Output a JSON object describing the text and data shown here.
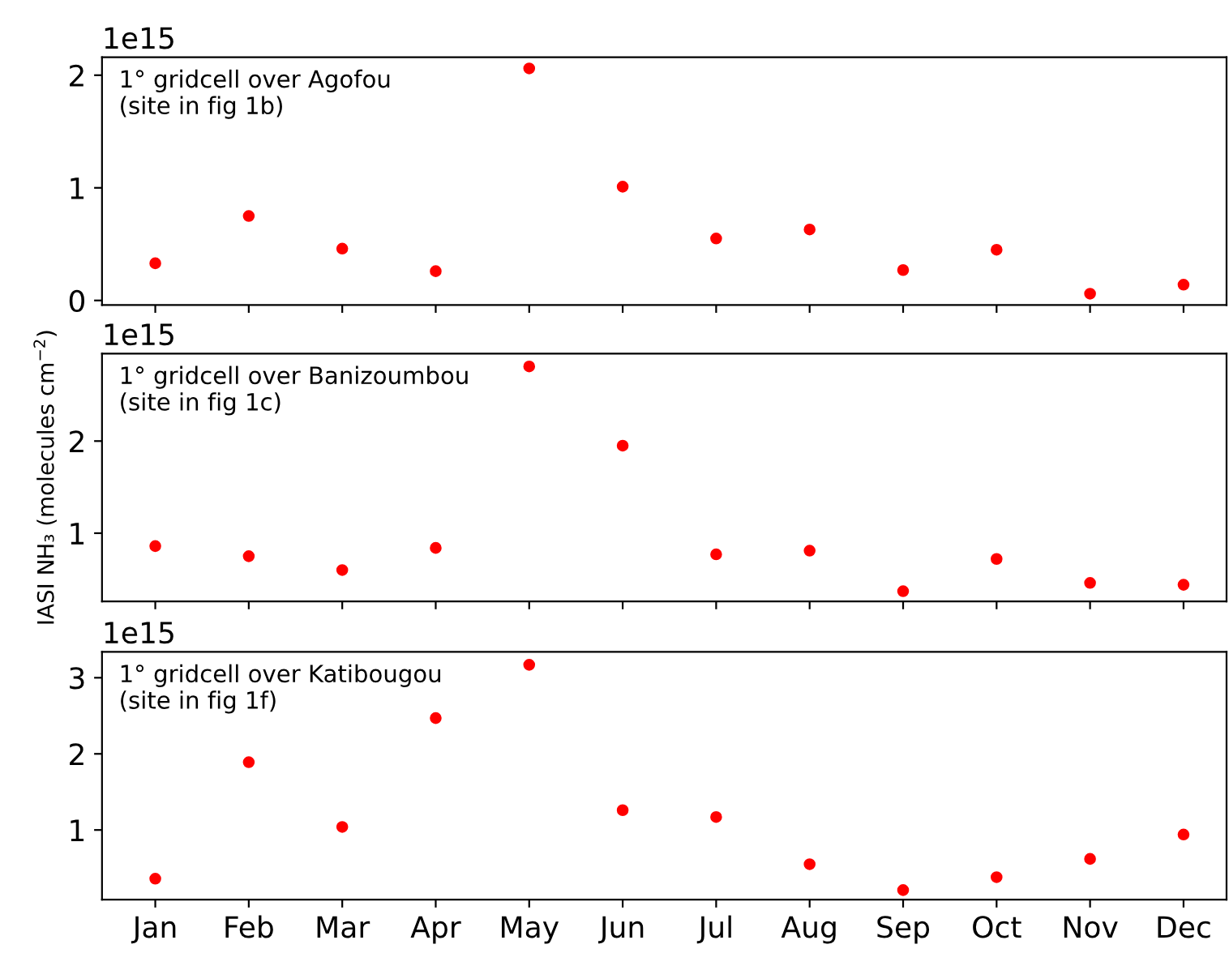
{
  "chart_data": [
    {
      "type": "scatter",
      "categories": [
        null,
        null,
        null,
        null,
        null,
        null,
        null,
        null,
        null,
        null,
        null,
        null
      ],
      "series": [
        {
          "color": "#ff0000",
          "values": [
            0.33,
            0.75,
            0.46,
            0.26,
            2.06,
            1.01,
            0.55,
            0.63,
            0.27,
            0.45,
            0.06,
            0.14
          ]
        }
      ],
      "marker": "circle",
      "ylim": [
        -0.04,
        2.16
      ],
      "yticks": [
        0,
        1,
        2
      ],
      "annotations": [
        "1e15",
        "1° gridcell over Agofou\n(site in fig 1b)"
      ]
    },
    {
      "type": "scatter",
      "categories": [
        null,
        null,
        null,
        null,
        null,
        null,
        null,
        null,
        null,
        null,
        null,
        null
      ],
      "series": [
        {
          "color": "#ff0000",
          "values": [
            0.86,
            0.75,
            0.6,
            0.84,
            2.81,
            1.95,
            0.77,
            0.81,
            0.37,
            0.72,
            0.46,
            0.44
          ]
        }
      ],
      "marker": "circle",
      "ylim": [
        0.26,
        2.95
      ],
      "yticks": [
        1,
        2
      ],
      "ylabel": "IASI NH₃ (molecules cm$^{−2}$)",
      "annotations": [
        "1e15",
        "1° gridcell over Banizoumbou\n(site in fig 1c)"
      ]
    },
    {
      "type": "scatter",
      "categories": [
        "Jan",
        "Feb",
        "Mar",
        "Apr",
        "May",
        "Jun",
        "Jul",
        "Aug",
        "Sep",
        "Oct",
        "Nov",
        "Dec"
      ],
      "series": [
        {
          "color": "#ff0000",
          "values": [
            0.36,
            1.89,
            1.04,
            2.47,
            3.17,
            1.26,
            1.17,
            0.55,
            0.21,
            0.38,
            0.62,
            0.94
          ]
        }
      ],
      "marker": "circle",
      "ylim": [
        0.085,
        3.34
      ],
      "yticks": [
        1,
        2,
        3
      ],
      "annotations": [
        "1e15",
        "1° gridcell over Katibougou\n(site in fig 1f)"
      ]
    }
  ]
}
